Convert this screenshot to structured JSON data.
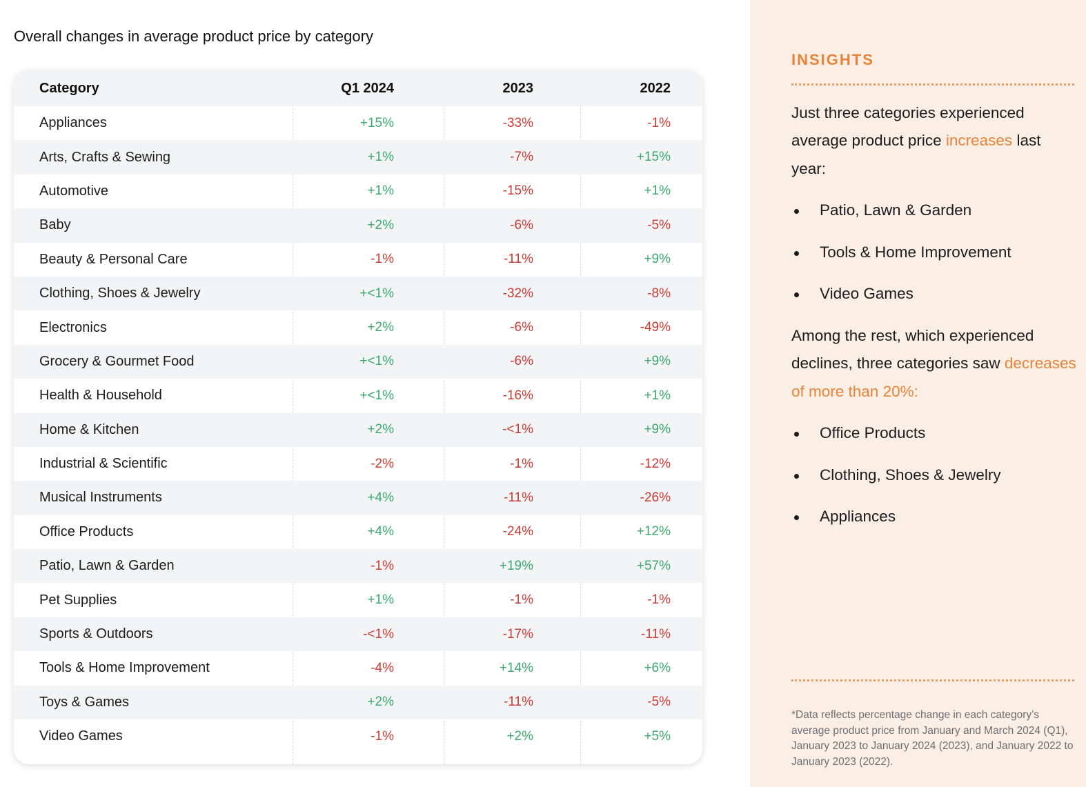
{
  "title": "Overall changes in average product price by category",
  "table": {
    "headers": [
      "Category",
      "Q1 2024",
      "2023",
      "2022"
    ],
    "rows": [
      {
        "category": "Appliances",
        "q1_2024": "+15%",
        "y2023": "-33%",
        "y2022": "-1%"
      },
      {
        "category": "Arts, Crafts & Sewing",
        "q1_2024": "+1%",
        "y2023": "-7%",
        "y2022": "+15%"
      },
      {
        "category": "Automotive",
        "q1_2024": "+1%",
        "y2023": "-15%",
        "y2022": "+1%"
      },
      {
        "category": "Baby",
        "q1_2024": "+2%",
        "y2023": "-6%",
        "y2022": "-5%"
      },
      {
        "category": "Beauty & Personal Care",
        "q1_2024": "-1%",
        "y2023": "-11%",
        "y2022": "+9%"
      },
      {
        "category": "Clothing, Shoes & Jewelry",
        "q1_2024": "+<1%",
        "y2023": "-32%",
        "y2022": "-8%"
      },
      {
        "category": "Electronics",
        "q1_2024": "+2%",
        "y2023": "-6%",
        "y2022": "-49%"
      },
      {
        "category": "Grocery & Gourmet Food",
        "q1_2024": "+<1%",
        "y2023": "-6%",
        "y2022": "+9%"
      },
      {
        "category": "Health & Household",
        "q1_2024": "+<1%",
        "y2023": "-16%",
        "y2022": "+1%"
      },
      {
        "category": "Home & Kitchen",
        "q1_2024": "+2%",
        "y2023": "-<1%",
        "y2022": "+9%"
      },
      {
        "category": "Industrial & Scientific",
        "q1_2024": "-2%",
        "y2023": "-1%",
        "y2022": "-12%"
      },
      {
        "category": "Musical Instruments",
        "q1_2024": "+4%",
        "y2023": "-11%",
        "y2022": "-26%"
      },
      {
        "category": "Office Products",
        "q1_2024": "+4%",
        "y2023": "-24%",
        "y2022": "+12%"
      },
      {
        "category": "Patio, Lawn & Garden",
        "q1_2024": "-1%",
        "y2023": "+19%",
        "y2022": "+57%"
      },
      {
        "category": "Pet Supplies",
        "q1_2024": "+1%",
        "y2023": "-1%",
        "y2022": "-1%"
      },
      {
        "category": "Sports & Outdoors",
        "q1_2024": "-<1%",
        "y2023": "-17%",
        "y2022": "-11%"
      },
      {
        "category": "Tools & Home Improvement",
        "q1_2024": "-4%",
        "y2023": "+14%",
        "y2022": "+6%"
      },
      {
        "category": "Toys & Games",
        "q1_2024": "+2%",
        "y2023": "-11%",
        "y2022": "-5%"
      },
      {
        "category": "Video Games",
        "q1_2024": "-1%",
        "y2023": "+2%",
        "y2022": "+5%"
      }
    ]
  },
  "colors": {
    "positive": "#3aa86f",
    "negative": "#cc3b33",
    "accent": "#e8843a",
    "sidebar_bg": "#fbeee4"
  },
  "insights": {
    "heading": "INSIGHTS",
    "p1_before": "Just three categories experienced average product price ",
    "p1_accent": "increases",
    "p1_after": " last year:",
    "increase_list": [
      "Patio, Lawn & Garden",
      "Tools & Home Improvement",
      "Video Games"
    ],
    "p2_before": "Among the rest, which experienced declines, three categories saw ",
    "p2_accent": "decreases of more than 20%:",
    "decrease_list": [
      "Office Products",
      "Clothing, Shoes & Jewelry",
      "Appliances"
    ],
    "footnote": "*Data reflects percentage change in each category’s average product price from January and March 2024 (Q1), January 2023 to January 2024 (2023), and January 2022 to January 2023 (2022)."
  }
}
